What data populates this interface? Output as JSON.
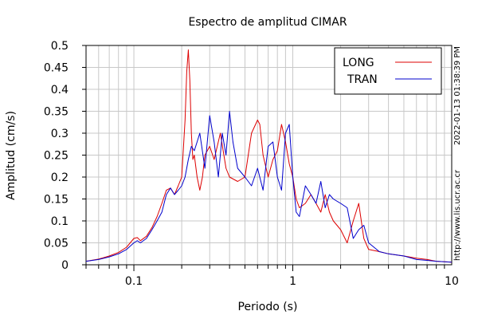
{
  "chart_data": {
    "type": "line",
    "title": "Espectro de amplitud CIMAR",
    "xlabel": "Periodo (s)",
    "ylabel": "Amplitud (cm/s)",
    "x_scale": "log",
    "xlim": [
      0.05,
      10
    ],
    "ylim": [
      0,
      0.5
    ],
    "x_ticks": [
      {
        "value": 0.1,
        "label": "0.1"
      },
      {
        "value": 1,
        "label": "1"
      },
      {
        "value": 10,
        "label": "10"
      }
    ],
    "y_ticks": [
      {
        "value": 0,
        "label": "0"
      },
      {
        "value": 0.05,
        "label": "0.05"
      },
      {
        "value": 0.1,
        "label": "0.1"
      },
      {
        "value": 0.15,
        "label": "0.15"
      },
      {
        "value": 0.2,
        "label": "0.2"
      },
      {
        "value": 0.25,
        "label": "0.25"
      },
      {
        "value": 0.3,
        "label": "0.3"
      },
      {
        "value": 0.35,
        "label": "0.35"
      },
      {
        "value": 0.4,
        "label": "0.4"
      },
      {
        "value": 0.45,
        "label": "0.45"
      },
      {
        "value": 0.5,
        "label": "0.5"
      }
    ],
    "grid": true,
    "legend_position": "top-right",
    "series": [
      {
        "name": "LONG",
        "color": "#dd0000",
        "x": [
          0.05,
          0.06,
          0.07,
          0.08,
          0.09,
          0.1,
          0.105,
          0.11,
          0.12,
          0.13,
          0.14,
          0.15,
          0.16,
          0.17,
          0.18,
          0.19,
          0.2,
          0.21,
          0.215,
          0.22,
          0.225,
          0.23,
          0.235,
          0.24,
          0.25,
          0.26,
          0.27,
          0.28,
          0.3,
          0.32,
          0.35,
          0.38,
          0.4,
          0.45,
          0.5,
          0.55,
          0.6,
          0.62,
          0.65,
          0.7,
          0.75,
          0.8,
          0.85,
          0.9,
          0.95,
          1.0,
          1.05,
          1.1,
          1.2,
          1.3,
          1.4,
          1.5,
          1.6,
          1.7,
          1.8,
          2.0,
          2.2,
          2.4,
          2.6,
          2.8,
          3.0,
          3.5,
          4.0,
          5.0,
          6.0,
          7.0,
          8.0,
          10.0
        ],
        "y": [
          0.008,
          0.013,
          0.02,
          0.028,
          0.04,
          0.06,
          0.062,
          0.055,
          0.065,
          0.085,
          0.11,
          0.14,
          0.17,
          0.175,
          0.16,
          0.18,
          0.2,
          0.33,
          0.44,
          0.49,
          0.42,
          0.3,
          0.24,
          0.25,
          0.2,
          0.17,
          0.2,
          0.25,
          0.27,
          0.24,
          0.3,
          0.22,
          0.2,
          0.19,
          0.2,
          0.3,
          0.33,
          0.32,
          0.25,
          0.2,
          0.24,
          0.26,
          0.32,
          0.28,
          0.23,
          0.2,
          0.15,
          0.13,
          0.14,
          0.16,
          0.14,
          0.12,
          0.16,
          0.12,
          0.1,
          0.08,
          0.05,
          0.1,
          0.14,
          0.06,
          0.035,
          0.03,
          0.025,
          0.02,
          0.015,
          0.012,
          0.008,
          0.006
        ]
      },
      {
        "name": "TRAN",
        "color": "#0000cc",
        "x": [
          0.05,
          0.06,
          0.07,
          0.08,
          0.09,
          0.1,
          0.105,
          0.11,
          0.12,
          0.13,
          0.14,
          0.15,
          0.16,
          0.17,
          0.18,
          0.19,
          0.2,
          0.21,
          0.22,
          0.23,
          0.24,
          0.25,
          0.26,
          0.28,
          0.3,
          0.32,
          0.34,
          0.36,
          0.38,
          0.4,
          0.42,
          0.45,
          0.5,
          0.55,
          0.6,
          0.65,
          0.7,
          0.75,
          0.8,
          0.85,
          0.9,
          0.95,
          1.0,
          1.05,
          1.1,
          1.2,
          1.3,
          1.4,
          1.5,
          1.6,
          1.7,
          1.8,
          2.0,
          2.2,
          2.4,
          2.6,
          2.8,
          3.0,
          3.5,
          4.0,
          5.0,
          6.0,
          7.0,
          8.0,
          10.0
        ],
        "y": [
          0.008,
          0.012,
          0.018,
          0.025,
          0.035,
          0.05,
          0.055,
          0.05,
          0.06,
          0.08,
          0.1,
          0.12,
          0.16,
          0.175,
          0.16,
          0.17,
          0.18,
          0.2,
          0.24,
          0.27,
          0.26,
          0.28,
          0.3,
          0.22,
          0.34,
          0.28,
          0.2,
          0.3,
          0.25,
          0.35,
          0.28,
          0.22,
          0.2,
          0.18,
          0.22,
          0.17,
          0.27,
          0.28,
          0.2,
          0.17,
          0.3,
          0.32,
          0.2,
          0.12,
          0.11,
          0.18,
          0.16,
          0.14,
          0.19,
          0.13,
          0.16,
          0.15,
          0.14,
          0.13,
          0.06,
          0.08,
          0.09,
          0.05,
          0.03,
          0.025,
          0.02,
          0.012,
          0.01,
          0.008,
          0.006
        ]
      }
    ],
    "side_annotations": {
      "timestamp": "2022-01-13 01:38:39 PM",
      "url": "http://www.lis.ucr.ac.cr"
    }
  }
}
